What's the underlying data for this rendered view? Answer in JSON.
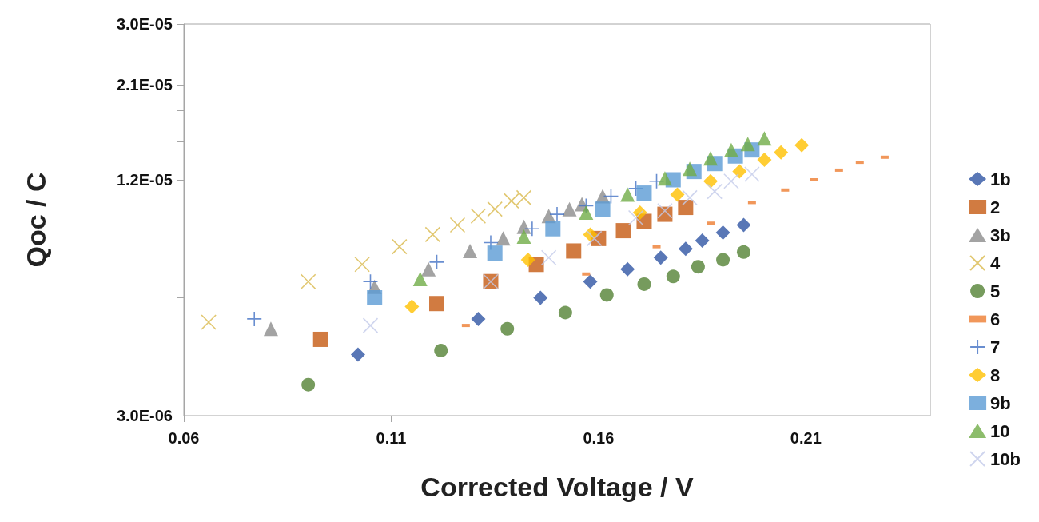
{
  "chart_data": {
    "type": "scatter",
    "xlabel": "Corrected Voltage / V",
    "ylabel": "Qoc / C",
    "xlim": [
      0.06,
      0.24
    ],
    "xticks": [
      0.06,
      0.11,
      0.16,
      0.21
    ],
    "ylim": [
      3e-06,
      3e-05
    ],
    "yticks": [
      {
        "value": 3e-06,
        "label": "3.0E-06"
      },
      {
        "value": 6e-06,
        "label": null
      },
      {
        "value": 9e-06,
        "label": null
      },
      {
        "value": 1.2e-05,
        "label": "1.2E-05"
      },
      {
        "value": 1.5e-05,
        "label": null
      },
      {
        "value": 1.8e-05,
        "label": null
      },
      {
        "value": 2.1e-05,
        "label": "2.1E-05"
      },
      {
        "value": 2.4e-05,
        "label": null
      },
      {
        "value": 2.7e-05,
        "label": null
      },
      {
        "value": 3e-05,
        "label": "3.0E-05"
      }
    ],
    "log": "y",
    "grid": false,
    "legend": "right",
    "series": [
      {
        "name": "1b",
        "color": "#2f55a4",
        "marker": "diamond",
        "x": [
          0.102,
          0.131,
          0.146,
          0.158,
          0.167,
          0.175,
          0.181,
          0.185,
          0.19,
          0.195
        ],
        "values": [
          4.3e-06,
          5.3e-06,
          6e-06,
          6.6e-06,
          7.1e-06,
          7.6e-06,
          8e-06,
          8.4e-06,
          8.8e-06,
          9.2e-06
        ]
      },
      {
        "name": "2",
        "color": "#c55a11",
        "marker": "square",
        "x": [
          0.093,
          0.121,
          0.134,
          0.145,
          0.154,
          0.16,
          0.166,
          0.171,
          0.176,
          0.181
        ],
        "values": [
          4.7e-06,
          5.8e-06,
          6.6e-06,
          7.3e-06,
          7.9e-06,
          8.5e-06,
          8.9e-06,
          9.4e-06,
          9.8e-06,
          1.02e-05
        ]
      },
      {
        "name": "3b",
        "color": "#8c8c8c",
        "marker": "triangle",
        "x": [
          0.081,
          0.106,
          0.119,
          0.129,
          0.137,
          0.142,
          0.148,
          0.153,
          0.156,
          0.161
        ],
        "values": [
          5e-06,
          6.4e-06,
          7.1e-06,
          7.9e-06,
          8.5e-06,
          9.1e-06,
          9.7e-06,
          1.01e-05,
          1.04e-05,
          1.09e-05
        ]
      },
      {
        "name": "4",
        "color": "#dab94c",
        "marker": "x",
        "x": [
          0.066,
          0.09,
          0.103,
          0.112,
          0.12,
          0.126,
          0.131,
          0.135,
          0.139,
          0.142
        ],
        "values": [
          5.2e-06,
          6.6e-06,
          7.3e-06,
          8.1e-06,
          8.7e-06,
          9.2e-06,
          9.7e-06,
          1.01e-05,
          1.06e-05,
          1.08e-05
        ]
      },
      {
        "name": "5",
        "color": "#548235",
        "marker": "circle",
        "x": [
          0.09,
          0.122,
          0.138,
          0.152,
          0.162,
          0.171,
          0.178,
          0.184,
          0.19,
          0.195
        ],
        "values": [
          3.6e-06,
          4.4e-06,
          5e-06,
          5.5e-06,
          6.1e-06,
          6.5e-06,
          6.8e-06,
          7.2e-06,
          7.5e-06,
          7.85e-06
        ]
      },
      {
        "name": "6",
        "color": "#ed7d31",
        "x": [
          0.128,
          0.157,
          0.174,
          0.187,
          0.197,
          0.205,
          0.212,
          0.218,
          0.223,
          0.229
        ],
        "values": [
          5.1e-06,
          6.9e-06,
          8.1e-06,
          9.3e-06,
          1.05e-05,
          1.13e-05,
          1.2e-05,
          1.27e-05,
          1.33e-05,
          1.37e-05
        ]
      },
      {
        "name": "7",
        "color": "#4472c4",
        "marker": "cross",
        "x": [
          0.077,
          0.105,
          0.121,
          0.134,
          0.144,
          0.15,
          0.157,
          0.163,
          0.169,
          0.174
        ],
        "values": [
          5.3e-06,
          6.6e-06,
          7.4e-06,
          8.3e-06,
          9e-06,
          9.8e-06,
          1.03e-05,
          1.09e-05,
          1.14e-05,
          1.19e-05
        ]
      },
      {
        "name": "8",
        "color": "#ffc000",
        "marker": "diamond",
        "x": [
          0.115,
          0.143,
          0.158,
          0.17,
          0.179,
          0.187,
          0.194,
          0.2,
          0.204,
          0.209
        ],
        "values": [
          5.7e-06,
          7.5e-06,
          8.7e-06,
          9.9e-06,
          1.1e-05,
          1.19e-05,
          1.26e-05,
          1.35e-05,
          1.41e-05,
          1.47e-05
        ]
      },
      {
        "name": "9b",
        "color": "#5b9bd5",
        "marker": "square",
        "x": [
          0.106,
          0.135,
          0.149,
          0.161,
          0.171,
          0.178,
          0.183,
          0.188,
          0.193,
          0.197
        ],
        "values": [
          6e-06,
          7.8e-06,
          9e-06,
          1.01e-05,
          1.11e-05,
          1.2e-05,
          1.26e-05,
          1.32e-05,
          1.38e-05,
          1.43e-05
        ]
      },
      {
        "name": "10",
        "color": "#70ad47",
        "marker": "triangle",
        "x": [
          0.117,
          0.142,
          0.157,
          0.167,
          0.176,
          0.182,
          0.187,
          0.192,
          0.196,
          0.2
        ],
        "values": [
          6.7e-06,
          8.6e-06,
          9.9e-06,
          1.1e-05,
          1.21e-05,
          1.28e-05,
          1.36e-05,
          1.43e-05,
          1.48e-05,
          1.53e-05
        ]
      },
      {
        "name": "10b",
        "color": "#c3cbea",
        "marker": "x",
        "x": [
          0.105,
          0.134,
          0.148,
          0.159,
          0.169,
          0.176,
          0.182,
          0.188,
          0.192,
          0.197
        ],
        "values": [
          5.1e-06,
          6.6e-06,
          7.6e-06,
          8.5e-06,
          9.6e-06,
          1e-05,
          1.08e-05,
          1.12e-05,
          1.19e-05,
          1.24e-05
        ]
      }
    ]
  }
}
